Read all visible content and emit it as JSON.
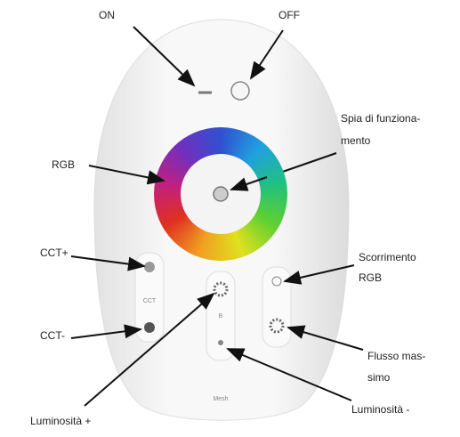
{
  "labels": {
    "on": "ON",
    "off": "OFF",
    "indicator": [
      "Spia di funziona-",
      "mento"
    ],
    "rgb": "RGB",
    "cct_plus": "CCT+",
    "cct_minus": "CCT-",
    "rgb_scroll": [
      "Scorrimento",
      "RGB"
    ],
    "max_flow": [
      "Flusso mas-",
      "simo"
    ],
    "brightness_plus": "Luminosità +",
    "brightness_minus": "Luminosità -"
  },
  "remote": {
    "cct": "CCT",
    "b": "B",
    "mesh": "Mesh"
  }
}
